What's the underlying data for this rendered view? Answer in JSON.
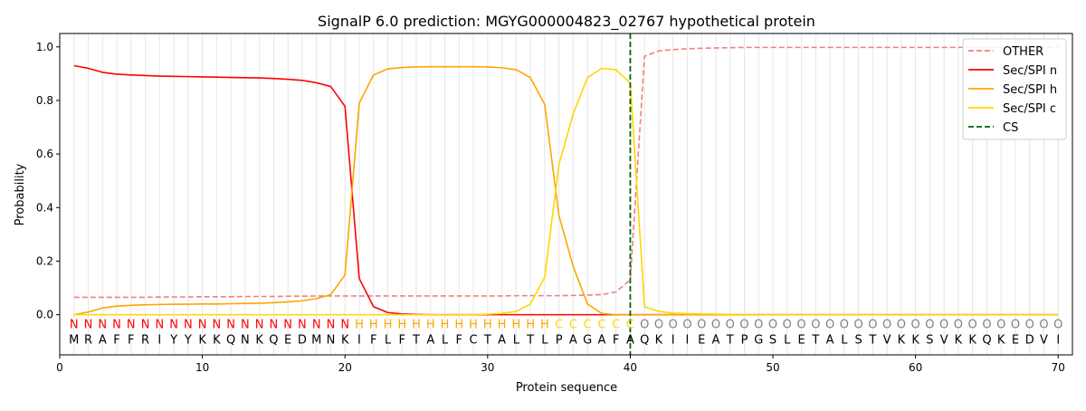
{
  "chart_data": {
    "type": "line",
    "title": "SignalP 6.0 prediction: MGYG000004823_02767 hypothetical protein",
    "xlabel": "Protein sequence",
    "ylabel": "Probability",
    "xlim": [
      0,
      71
    ],
    "ylim": [
      -0.15,
      1.05
    ],
    "xticks": [
      0,
      10,
      20,
      30,
      40,
      50,
      60,
      70
    ],
    "yticks": [
      0.0,
      0.2,
      0.4,
      0.6,
      0.8,
      1.0
    ],
    "grid": "vertical lines at every residue",
    "legend_position": "top-right",
    "sequence": "MRAFFRIYYKKQNKQEDMNKIFLFTALFCTALTLPAGAFAQKIIEATPGSLETALSTVKKSVKKQKEDVI",
    "labels": "NNNNNNNNNNNNNNNNNNNNHHHHHHHHHHHHHHCCCCCCOOOOOOOOOOOOOOOOOOOOOOOOOOOOOO",
    "label_colors": {
      "N": "#ff0000",
      "H": "#ffa500",
      "C": "#ffd700",
      "O": "#808080"
    },
    "cleavage_site": 40,
    "series": [
      {
        "name": "OTHER",
        "color": "#f08080",
        "dash": "dashed",
        "values": [
          0.065,
          0.065,
          0.065,
          0.065,
          0.065,
          0.065,
          0.066,
          0.066,
          0.066,
          0.067,
          0.067,
          0.067,
          0.068,
          0.068,
          0.068,
          0.069,
          0.069,
          0.07,
          0.07,
          0.07,
          0.07,
          0.07,
          0.07,
          0.07,
          0.07,
          0.07,
          0.07,
          0.07,
          0.07,
          0.07,
          0.07,
          0.071,
          0.071,
          0.071,
          0.071,
          0.072,
          0.073,
          0.075,
          0.085,
          0.13,
          0.965,
          0.985,
          0.99,
          0.993,
          0.995,
          0.996,
          0.997,
          0.998,
          0.998,
          0.998,
          0.998,
          0.998,
          0.998,
          0.998,
          0.998,
          0.998,
          0.998,
          0.998,
          0.998,
          0.998,
          0.998,
          0.998,
          0.998,
          0.998,
          0.998,
          0.998,
          0.998,
          0.998,
          0.998,
          0.998
        ]
      },
      {
        "name": "Sec/SPI n",
        "color": "#ff0000",
        "dash": "solid",
        "values": [
          0.93,
          0.92,
          0.905,
          0.898,
          0.895,
          0.893,
          0.891,
          0.89,
          0.889,
          0.888,
          0.887,
          0.886,
          0.885,
          0.884,
          0.882,
          0.879,
          0.875,
          0.866,
          0.852,
          0.778,
          0.135,
          0.03,
          0.008,
          0.003,
          0.001,
          0.0,
          0.0,
          0.0,
          0.0,
          0.0,
          0.0,
          0.0,
          0.0,
          0.0,
          0.0,
          0.0,
          0.0,
          0.0,
          0.0,
          0.0,
          0.0,
          0.0,
          0.0,
          0.0,
          0.0,
          0.0,
          0.0,
          0.0,
          0.0,
          0.0,
          0.0,
          0.0,
          0.0,
          0.0,
          0.0,
          0.0,
          0.0,
          0.0,
          0.0,
          0.0,
          0.0,
          0.0,
          0.0,
          0.0,
          0.0,
          0.0,
          0.0,
          0.0,
          0.0,
          0.0
        ]
      },
      {
        "name": "Sec/SPI h",
        "color": "#ffa500",
        "dash": "solid",
        "values": [
          0.0,
          0.01,
          0.025,
          0.032,
          0.035,
          0.037,
          0.038,
          0.039,
          0.039,
          0.04,
          0.04,
          0.041,
          0.042,
          0.043,
          0.045,
          0.048,
          0.052,
          0.06,
          0.075,
          0.148,
          0.79,
          0.895,
          0.918,
          0.923,
          0.925,
          0.926,
          0.926,
          0.926,
          0.926,
          0.925,
          0.922,
          0.915,
          0.885,
          0.785,
          0.37,
          0.18,
          0.04,
          0.005,
          0.0,
          0.0,
          0.0,
          0.0,
          0.0,
          0.0,
          0.0,
          0.0,
          0.0,
          0.0,
          0.0,
          0.0,
          0.0,
          0.0,
          0.0,
          0.0,
          0.0,
          0.0,
          0.0,
          0.0,
          0.0,
          0.0,
          0.0,
          0.0,
          0.0,
          0.0,
          0.0,
          0.0,
          0.0,
          0.0,
          0.0,
          0.0
        ]
      },
      {
        "name": "Sec/SPI c",
        "color": "#ffd700",
        "dash": "solid",
        "values": [
          0.0,
          0.0,
          0.0,
          0.0,
          0.0,
          0.0,
          0.0,
          0.0,
          0.0,
          0.0,
          0.0,
          0.0,
          0.0,
          0.0,
          0.0,
          0.0,
          0.0,
          0.0,
          0.0,
          0.0,
          0.0,
          0.0,
          0.0,
          0.0,
          0.0,
          0.0,
          0.0,
          0.0,
          0.0,
          0.002,
          0.005,
          0.012,
          0.04,
          0.14,
          0.56,
          0.75,
          0.885,
          0.92,
          0.915,
          0.865,
          0.03,
          0.012,
          0.006,
          0.004,
          0.003,
          0.002,
          0.001,
          0.001,
          0.0,
          0.0,
          0.0,
          0.0,
          0.0,
          0.0,
          0.0,
          0.0,
          0.0,
          0.0,
          0.0,
          0.0,
          0.0,
          0.0,
          0.0,
          0.0,
          0.0,
          0.0,
          0.0,
          0.0,
          0.0,
          0.0
        ]
      },
      {
        "name": "CS",
        "color": "#006400",
        "dash": "dashed",
        "x": 40
      }
    ]
  }
}
